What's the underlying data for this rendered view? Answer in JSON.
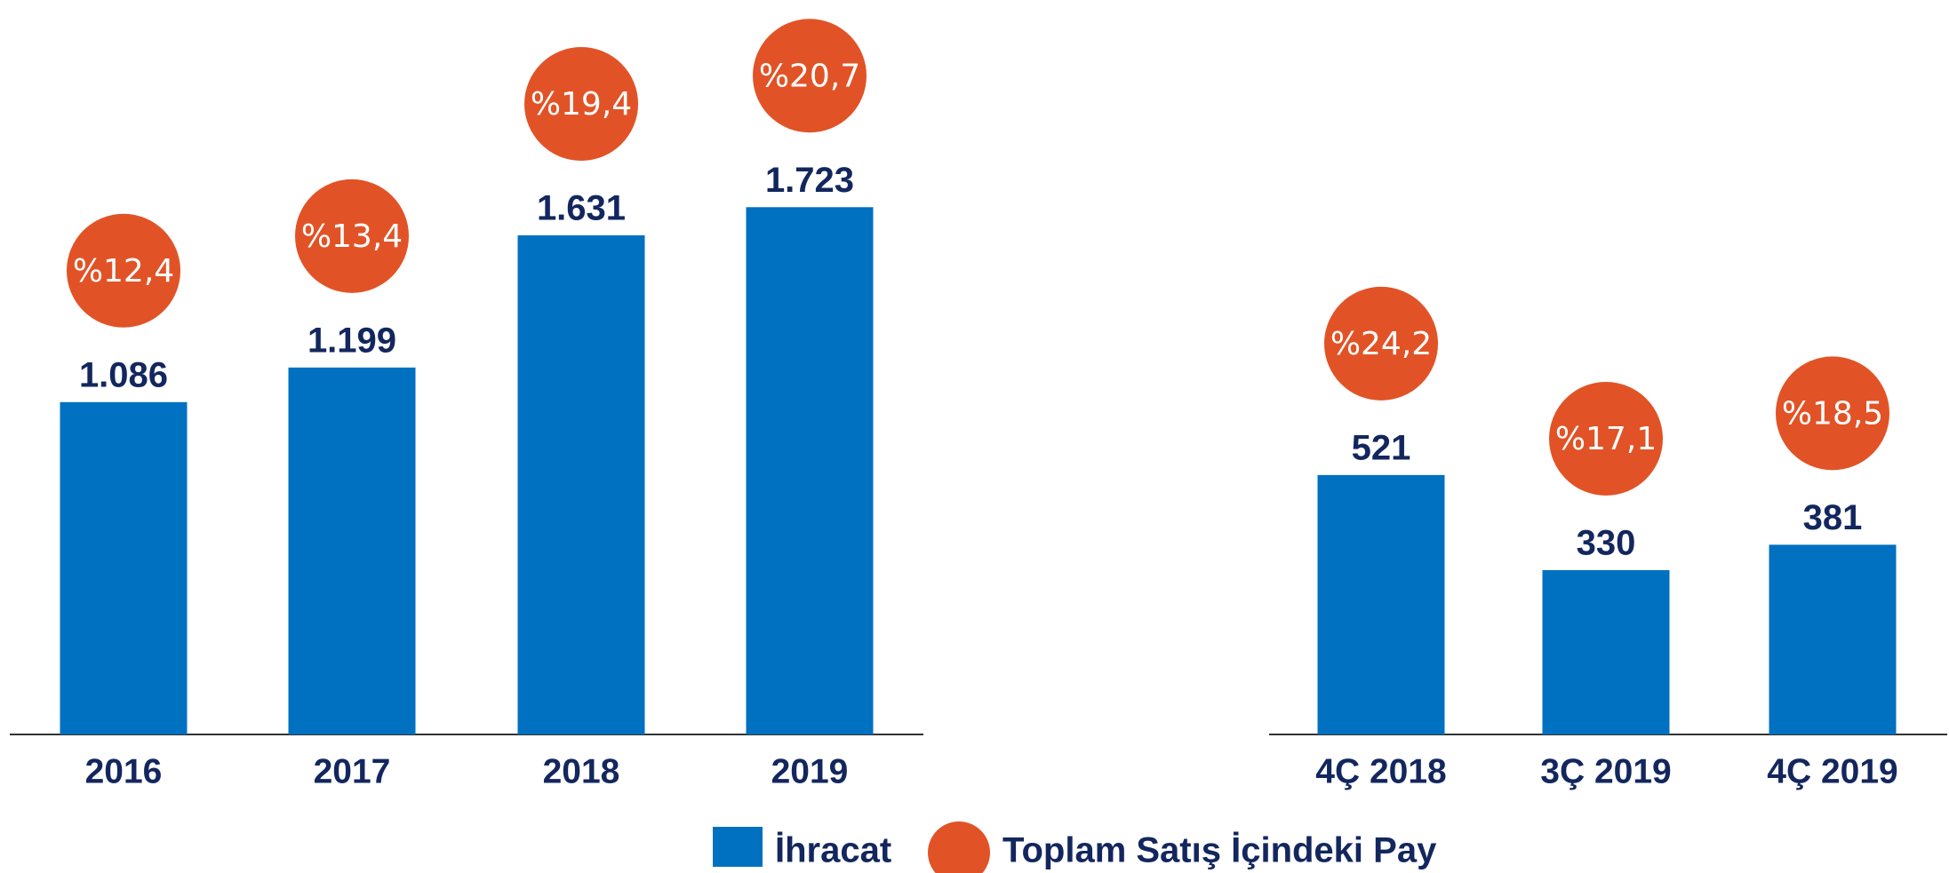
{
  "chart_data": [
    {
      "type": "bar",
      "categories": [
        "2016",
        "2017",
        "2018",
        "2019"
      ],
      "ylim": [
        0,
        2400
      ],
      "series": [
        {
          "name": "İhracat",
          "color": "#0070c0",
          "values": [
            1086,
            1199,
            1631,
            1723
          ],
          "value_labels": [
            "1.086",
            "1.199",
            "1.631",
            "1.723"
          ]
        },
        {
          "name": "Toplam Satış İçindeki Pay",
          "color": "#e15326",
          "values": [
            12.4,
            13.4,
            19.4,
            20.7
          ],
          "value_labels": [
            "%12,4",
            "%13,4",
            "%19,4",
            "%20,7"
          ]
        }
      ]
    },
    {
      "type": "bar",
      "categories": [
        "4Ç 2018",
        "3Ç 2019",
        "4Ç 2019"
      ],
      "ylim": [
        0,
        1475
      ],
      "series": [
        {
          "color": "#0070c0",
          "values": [
            521,
            330,
            381
          ],
          "value_labels": [
            "521",
            "330",
            "381"
          ]
        },
        {
          "color": "#e15326",
          "values": [
            24.2,
            17.1,
            18.5
          ],
          "value_labels": [
            "%24,2",
            "%17,1",
            "%18,5"
          ]
        }
      ]
    }
  ]
}
